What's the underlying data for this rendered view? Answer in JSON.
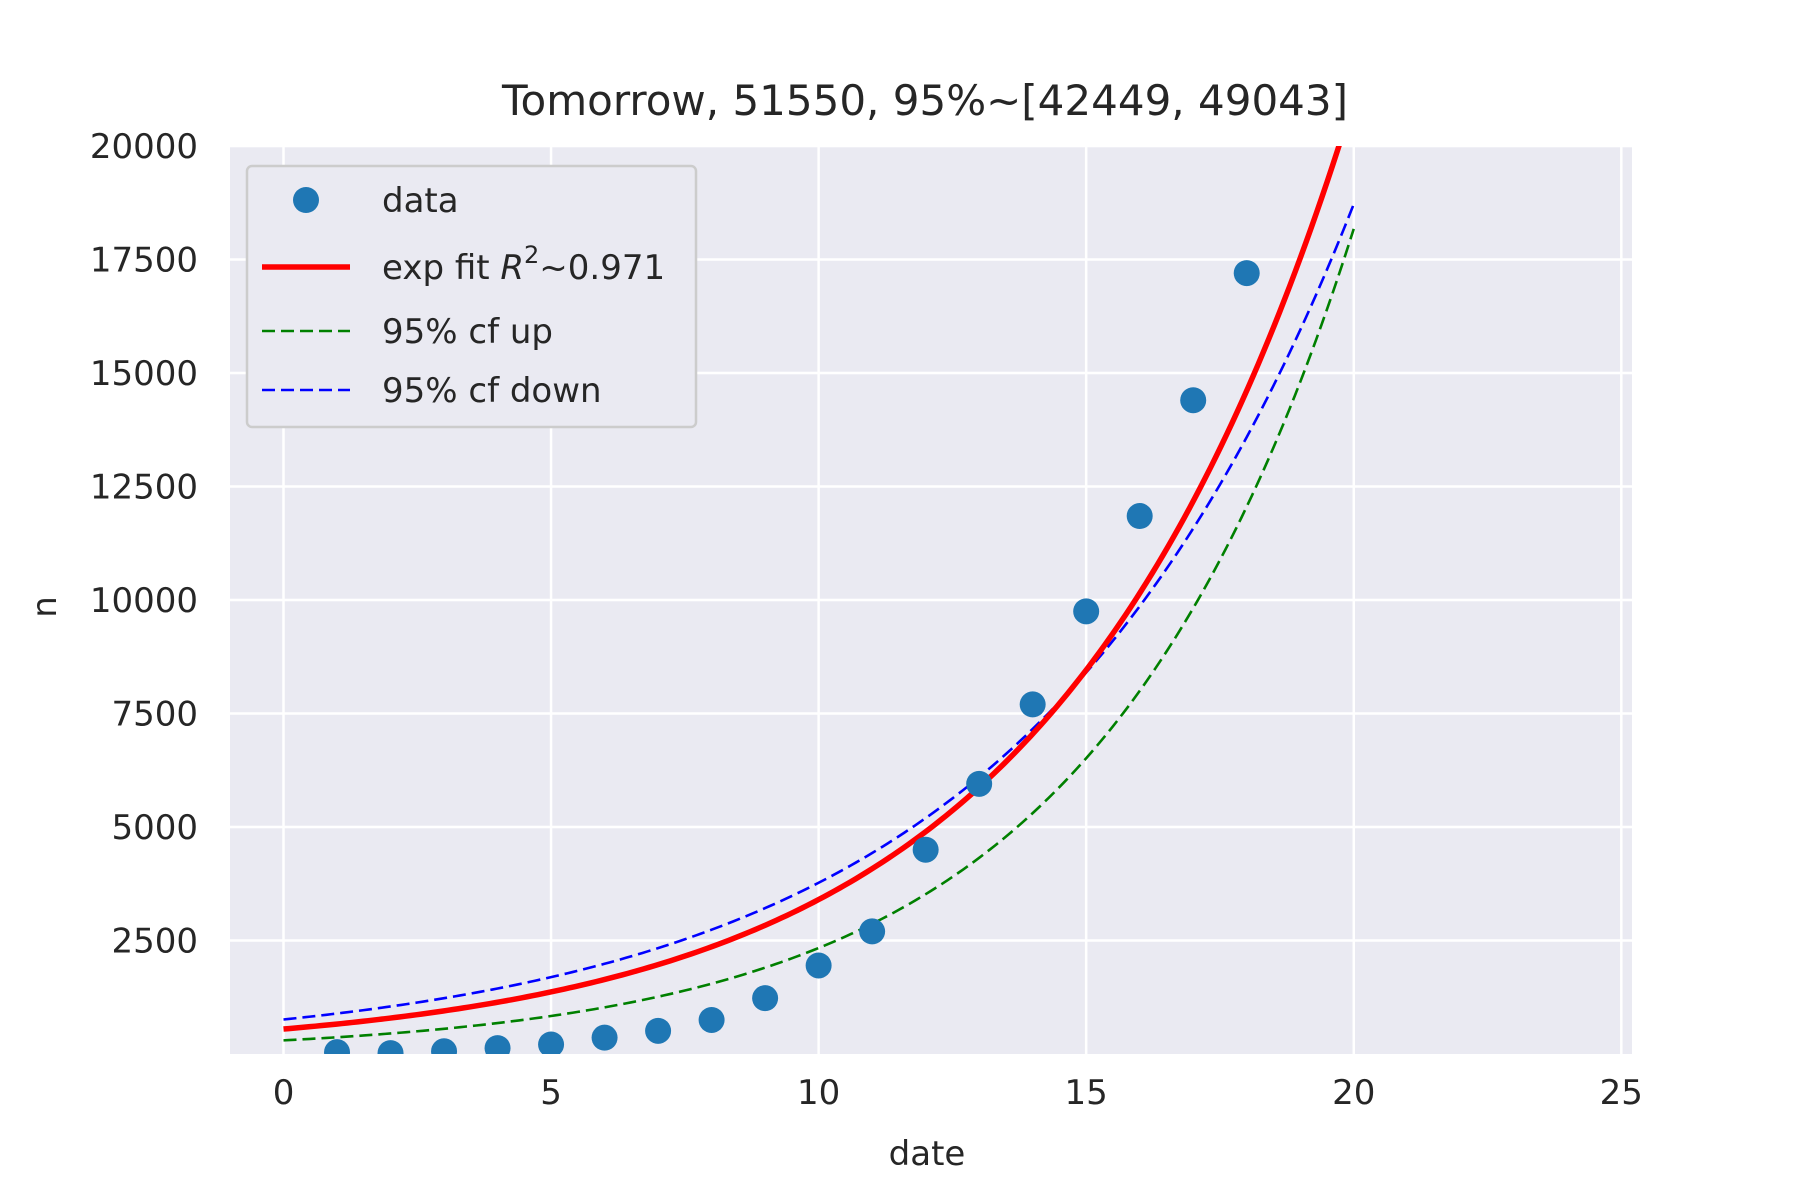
{
  "chart_data": {
    "type": "line",
    "title": "Tomorrow, 51550, 95%~[42449, 49043]",
    "xlabel": "date",
    "ylabel": "n",
    "xlim": [
      -1,
      25.2
    ],
    "ylim": [
      0,
      20000
    ],
    "x_ticks": [
      0,
      5,
      10,
      15,
      20,
      25
    ],
    "y_ticks": [
      2500,
      5000,
      7500,
      10000,
      12500,
      15000,
      17500,
      20000
    ],
    "grid": true,
    "background": "#eaeaf2",
    "legend_position": "top-left",
    "series": [
      {
        "name": "data",
        "kind": "scatter",
        "color": "#1f77b4",
        "x": [
          1,
          2,
          3,
          4,
          5,
          6,
          7,
          8,
          9,
          10,
          11,
          12,
          13,
          14,
          15,
          16,
          17,
          18
        ],
        "y": [
          40,
          20,
          60,
          130,
          210,
          360,
          510,
          750,
          1230,
          1950,
          2700,
          4500,
          5950,
          7700,
          9750,
          11850,
          14400,
          17200
        ]
      },
      {
        "name": "exp fit",
        "name_math": "R",
        "name_sup": "2",
        "name_suffix": "~0.971",
        "kind": "line",
        "color": "#ff0000",
        "dash": "solid",
        "a": 550,
        "b": 0.1822,
        "x_range": [
          0,
          19.8
        ]
      },
      {
        "name": "95% cf up",
        "kind": "line",
        "color": "#008000",
        "dash": "dashed",
        "a": 300,
        "b": 0.2052,
        "x_range": [
          0,
          20
        ]
      },
      {
        "name": "95% cf down",
        "kind": "line",
        "color": "#0000ff",
        "dash": "dashed",
        "a": 760,
        "b": 0.1602,
        "x_range": [
          0,
          20
        ]
      }
    ]
  }
}
